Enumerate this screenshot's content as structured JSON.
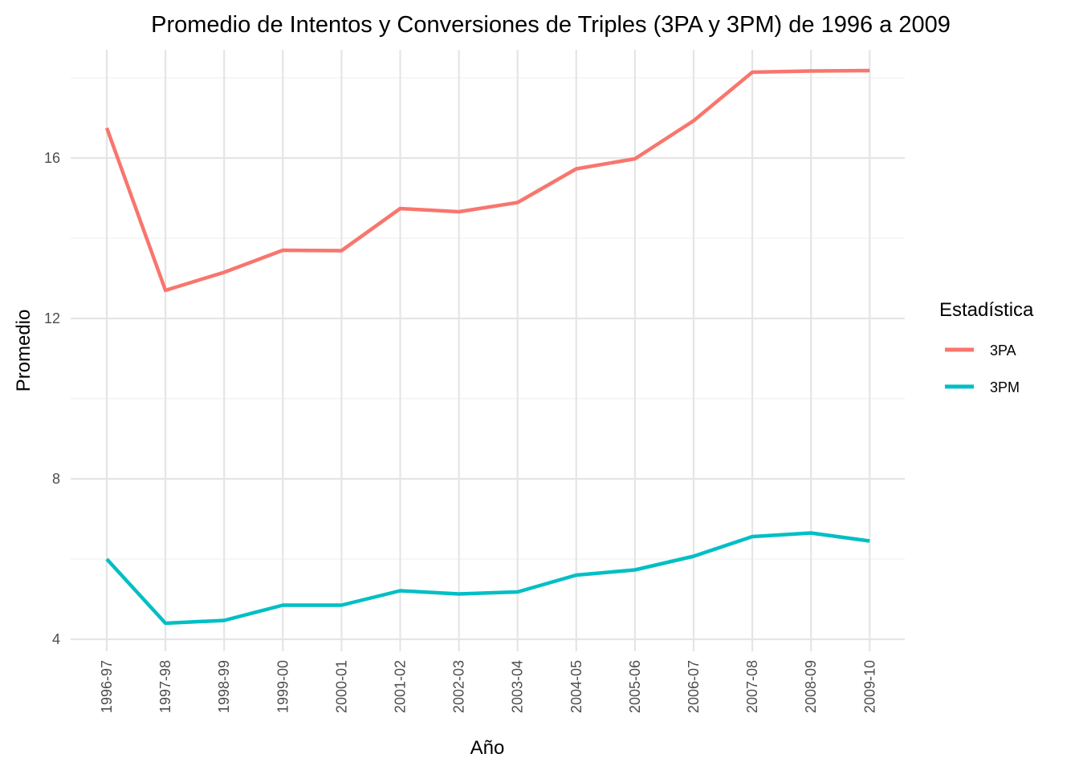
{
  "chart_data": {
    "type": "line",
    "title": "Promedio de Intentos y Conversiones de Triples (3PA y 3PM) de 1996 a 2009",
    "xlabel": "Año",
    "ylabel": "Promedio",
    "categories": [
      "1996-97",
      "1997-98",
      "1998-99",
      "1999-00",
      "2000-01",
      "2001-02",
      "2002-03",
      "2003-04",
      "2004-05",
      "2005-06",
      "2006-07",
      "2007-08",
      "2008-09",
      "2009-10"
    ],
    "yticks": [
      4,
      8,
      12,
      16
    ],
    "ylim": [
      3.7,
      18.7
    ],
    "grid": true,
    "legend": {
      "title": "Estadística",
      "position": "right"
    },
    "series": [
      {
        "name": "3PA",
        "color": "#F8766D",
        "values": [
          16.75,
          12.7,
          13.15,
          13.7,
          13.69,
          14.74,
          14.66,
          14.89,
          15.73,
          15.98,
          16.93,
          18.14,
          18.17,
          18.18
        ]
      },
      {
        "name": "3PM",
        "color": "#00BFC4",
        "values": [
          6.0,
          4.4,
          4.47,
          4.85,
          4.85,
          5.21,
          5.13,
          5.18,
          5.6,
          5.73,
          6.07,
          6.56,
          6.65,
          6.45
        ]
      }
    ]
  }
}
